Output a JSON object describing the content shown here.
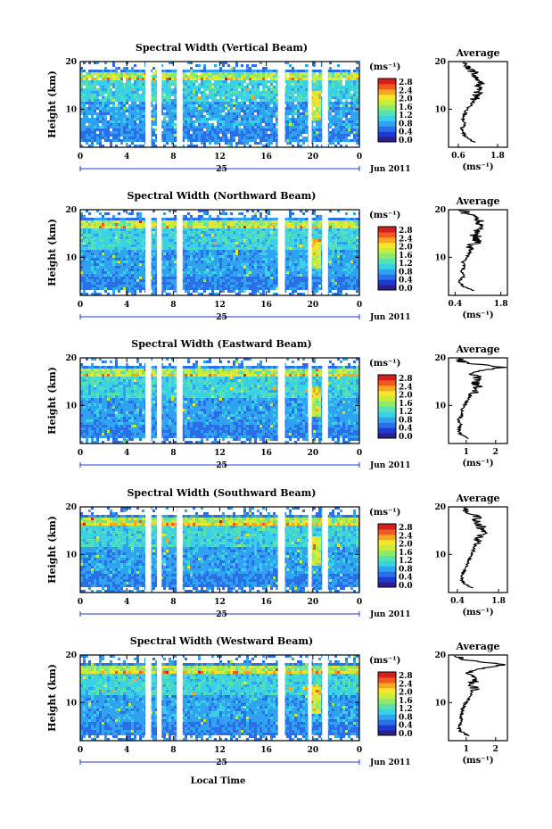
{
  "chart_data": {
    "type": "heatmap",
    "panels": [
      {
        "title": "Spectral Width (Vertical Beam)",
        "cb_ticks": [
          "2.8",
          "2.4",
          "2.0",
          "1.6",
          "1.2",
          "0.8",
          "0.4",
          "0.0"
        ],
        "avg_title": "Average",
        "avg_xticks": [
          "0.6",
          "1.8"
        ],
        "avg_xlim": [
          0.3,
          2.1
        ],
        "avg_profile": [
          [
            1.1,
            3
          ],
          [
            0.85,
            4
          ],
          [
            0.75,
            5
          ],
          [
            0.7,
            6
          ],
          [
            0.8,
            7
          ],
          [
            0.75,
            8
          ],
          [
            0.8,
            9
          ],
          [
            0.85,
            10
          ],
          [
            1.0,
            11
          ],
          [
            1.1,
            12
          ],
          [
            1.15,
            13
          ],
          [
            1.25,
            14
          ],
          [
            1.2,
            15
          ],
          [
            1.3,
            16
          ],
          [
            1.2,
            17
          ],
          [
            1.05,
            18
          ],
          [
            0.8,
            19
          ],
          [
            0.7,
            20
          ]
        ]
      },
      {
        "title": "Spectral Width (Northward Beam)",
        "cb_ticks": [
          "2.8",
          "2.4",
          "2.0",
          "1.6",
          "1.2",
          "0.8",
          "0.4",
          "0.0"
        ],
        "avg_title": "Average",
        "avg_xticks": [
          "0.4",
          "1.8"
        ],
        "avg_xlim": [
          0.2,
          2.0
        ],
        "avg_profile": [
          [
            0.95,
            3
          ],
          [
            0.6,
            4
          ],
          [
            0.55,
            5
          ],
          [
            0.65,
            6
          ],
          [
            0.6,
            7
          ],
          [
            0.7,
            8
          ],
          [
            0.65,
            9
          ],
          [
            0.75,
            10
          ],
          [
            0.85,
            11
          ],
          [
            0.9,
            12
          ],
          [
            1.0,
            13
          ],
          [
            1.05,
            14
          ],
          [
            1.0,
            15
          ],
          [
            1.2,
            16
          ],
          [
            1.05,
            17
          ],
          [
            1.15,
            18
          ],
          [
            0.8,
            19
          ],
          [
            0.6,
            20
          ]
        ]
      },
      {
        "title": "Spectral Width (Eastward Beam)",
        "cb_ticks": [
          "2.8",
          "2.4",
          "2.0",
          "1.6",
          "1.2",
          "0.8",
          "0.4",
          "0.0"
        ],
        "avg_title": "Average",
        "avg_xticks": [
          "1",
          "2"
        ],
        "avg_xlim": [
          0.4,
          2.4
        ],
        "avg_profile": [
          [
            1.1,
            3
          ],
          [
            0.8,
            4
          ],
          [
            0.75,
            5
          ],
          [
            0.8,
            6
          ],
          [
            0.75,
            7
          ],
          [
            0.85,
            8
          ],
          [
            0.85,
            9
          ],
          [
            0.95,
            10
          ],
          [
            1.05,
            11
          ],
          [
            1.15,
            12
          ],
          [
            1.3,
            13
          ],
          [
            1.4,
            14
          ],
          [
            1.3,
            15
          ],
          [
            1.4,
            16
          ],
          [
            1.1,
            17
          ],
          [
            2.3,
            18
          ],
          [
            0.9,
            19
          ],
          [
            0.7,
            20
          ]
        ]
      },
      {
        "title": "Spectral Width (Southward Beam)",
        "cb_ticks": [
          "2.8",
          "2.4",
          "2.0",
          "1.6",
          "1.2",
          "0.8",
          "0.4",
          "0.0"
        ],
        "avg_title": "Average",
        "avg_xticks": [
          "0.4",
          "1.8"
        ],
        "avg_xlim": [
          0.1,
          2.1
        ],
        "avg_profile": [
          [
            0.9,
            3
          ],
          [
            0.6,
            4
          ],
          [
            0.55,
            5
          ],
          [
            0.6,
            6
          ],
          [
            0.65,
            7
          ],
          [
            0.75,
            8
          ],
          [
            0.8,
            9
          ],
          [
            0.9,
            10
          ],
          [
            0.95,
            11
          ],
          [
            1.0,
            12
          ],
          [
            1.1,
            13
          ],
          [
            1.2,
            14
          ],
          [
            1.25,
            15
          ],
          [
            1.2,
            16
          ],
          [
            1.0,
            17
          ],
          [
            1.1,
            18
          ],
          [
            0.7,
            19
          ],
          [
            0.55,
            20
          ]
        ]
      },
      {
        "title": "Spectral Width (Westward Beam)",
        "cb_ticks": [
          "2.8",
          "2.4",
          "2.0",
          "1.6",
          "1.2",
          "0.8",
          "0.4",
          "0.0"
        ],
        "avg_title": "Average",
        "avg_xticks": [
          "1",
          "2"
        ],
        "avg_xlim": [
          0.4,
          2.4
        ],
        "avg_profile": [
          [
            1.1,
            3
          ],
          [
            0.8,
            4
          ],
          [
            0.75,
            5
          ],
          [
            0.85,
            6
          ],
          [
            0.8,
            7
          ],
          [
            0.85,
            8
          ],
          [
            0.9,
            9
          ],
          [
            1.0,
            10
          ],
          [
            1.1,
            11
          ],
          [
            1.2,
            12
          ],
          [
            1.3,
            13
          ],
          [
            1.2,
            14
          ],
          [
            1.35,
            15
          ],
          [
            1.1,
            16
          ],
          [
            1.3,
            17
          ],
          [
            2.3,
            18
          ],
          [
            0.9,
            19
          ],
          [
            0.7,
            20
          ]
        ]
      }
    ],
    "x_ticks": [
      "0",
      "4",
      "8",
      "12",
      "16",
      "20",
      "0"
    ],
    "xlim": [
      0,
      24
    ],
    "y_ticks": [
      "10",
      "20"
    ],
    "ylim": [
      2,
      20
    ],
    "ylabel": "Height (km)",
    "cb_unit": "(ms⁻¹)",
    "avg_unit": "(ms⁻¹)",
    "date_day": "25",
    "date_label": "Jun 2011",
    "xlabel": "Local Time",
    "colormap": [
      "#2a1f8c",
      "#1f3bcf",
      "#2b6fe8",
      "#2fa3f0",
      "#3ad0e6",
      "#57e0b0",
      "#8ee86c",
      "#c6ec3e",
      "#f3e62c",
      "#f7a623",
      "#ef5a1f",
      "#d3201e"
    ],
    "data_gaps_hours": [
      [
        5.6,
        6.1
      ],
      [
        6.6,
        7.0
      ],
      [
        8.3,
        8.8
      ],
      [
        17.0,
        17.6
      ],
      [
        19.6,
        19.9
      ],
      [
        20.8,
        21.3
      ]
    ]
  }
}
